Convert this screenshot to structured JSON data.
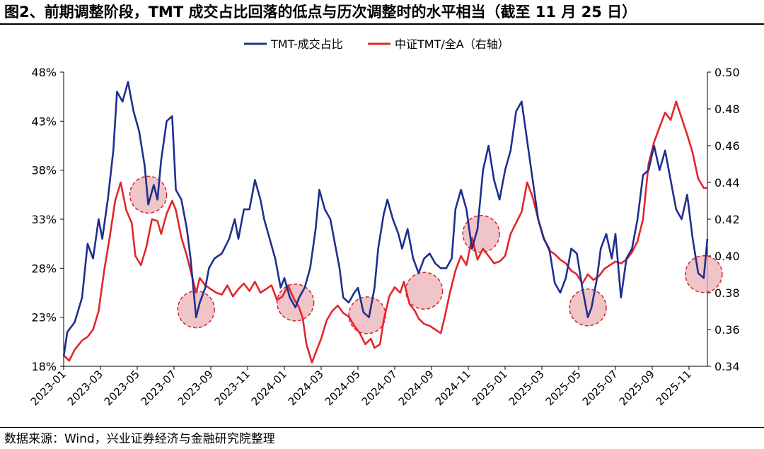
{
  "title": "图2、前期调整阶段，TMT 成交占比回落的低点与历次调整时的水平相当（截至 11 月 25 日）",
  "source": "数据来源：Wind，兴业证券经济与金融研究院整理",
  "colors": {
    "tmt_share": "#1f2f8f",
    "tmt_index": "#e3262b",
    "circle_fill": "#e9b1b4",
    "circle_stroke": "#d6262b"
  },
  "chart_data": {
    "type": "line",
    "legend": [
      "TMT-成交占比",
      "中证TMT/全A（右轴）"
    ],
    "legend_position": "top-center",
    "x_ticks": [
      "2023-01",
      "2023-03",
      "2023-05",
      "2023-07",
      "2023-09",
      "2023-11",
      "2024-01",
      "2024-03",
      "2024-05",
      "2024-07",
      "2024-09",
      "2024-11",
      "2025-01",
      "2025-03",
      "2025-05",
      "2025-07",
      "2025-09",
      "2025-11"
    ],
    "x_range": [
      "2023-01",
      "2025-11-25"
    ],
    "y_left": {
      "label": "TMT-成交占比",
      "ticks": [
        "48%",
        "43%",
        "38%",
        "33%",
        "28%",
        "23%",
        "18%"
      ],
      "min": 18,
      "max": 48
    },
    "y_right": {
      "label": "中证TMT/全A",
      "ticks": [
        "0.50",
        "0.48",
        "0.46",
        "0.44",
        "0.42",
        "0.40",
        "0.38",
        "0.36",
        "0.34"
      ],
      "min": 0.34,
      "max": 0.5
    },
    "series": [
      {
        "name": "TMT-成交占比",
        "axis": "left",
        "color": "#1f2f8f",
        "points": [
          [
            0.0,
            19
          ],
          [
            0.2,
            21.5
          ],
          [
            0.6,
            22.5
          ],
          [
            1.0,
            25
          ],
          [
            1.3,
            30.5
          ],
          [
            1.6,
            29
          ],
          [
            1.9,
            33
          ],
          [
            2.1,
            31
          ],
          [
            2.4,
            35
          ],
          [
            2.7,
            40
          ],
          [
            2.9,
            46
          ],
          [
            3.2,
            45
          ],
          [
            3.5,
            47
          ],
          [
            3.8,
            44
          ],
          [
            4.1,
            42
          ],
          [
            4.4,
            38.5
          ],
          [
            4.6,
            34.5
          ],
          [
            4.9,
            36.5
          ],
          [
            5.1,
            35
          ],
          [
            5.3,
            39
          ],
          [
            5.6,
            43
          ],
          [
            5.9,
            43.5
          ],
          [
            6.1,
            36
          ],
          [
            6.4,
            35
          ],
          [
            6.7,
            32
          ],
          [
            6.9,
            29
          ],
          [
            7.2,
            23
          ],
          [
            7.4,
            24.5
          ],
          [
            7.7,
            26
          ],
          [
            7.9,
            28
          ],
          [
            8.2,
            29
          ],
          [
            8.6,
            29.5
          ],
          [
            9.0,
            31
          ],
          [
            9.3,
            33
          ],
          [
            9.5,
            31
          ],
          [
            9.8,
            34
          ],
          [
            10.1,
            34
          ],
          [
            10.4,
            37
          ],
          [
            10.7,
            35
          ],
          [
            10.9,
            33
          ],
          [
            11.2,
            31
          ],
          [
            11.5,
            29
          ],
          [
            11.8,
            26
          ],
          [
            12.0,
            27
          ],
          [
            12.3,
            25
          ],
          [
            12.6,
            24
          ],
          [
            12.8,
            25
          ],
          [
            13.1,
            26
          ],
          [
            13.4,
            28
          ],
          [
            13.7,
            32
          ],
          [
            13.9,
            36
          ],
          [
            14.2,
            34
          ],
          [
            14.5,
            33
          ],
          [
            14.7,
            31
          ],
          [
            15.0,
            28
          ],
          [
            15.2,
            25
          ],
          [
            15.5,
            24.5
          ],
          [
            15.8,
            25.5
          ],
          [
            16.0,
            26
          ],
          [
            16.3,
            23.5
          ],
          [
            16.6,
            23
          ],
          [
            16.9,
            26
          ],
          [
            17.1,
            30
          ],
          [
            17.4,
            33.5
          ],
          [
            17.6,
            35
          ],
          [
            17.9,
            33
          ],
          [
            18.2,
            31.5
          ],
          [
            18.4,
            30
          ],
          [
            18.7,
            32
          ],
          [
            19.0,
            29
          ],
          [
            19.3,
            27.5
          ],
          [
            19.6,
            29
          ],
          [
            19.9,
            29.5
          ],
          [
            20.2,
            28.5
          ],
          [
            20.5,
            28
          ],
          [
            20.8,
            28
          ],
          [
            21.1,
            29
          ],
          [
            21.3,
            34
          ],
          [
            21.6,
            36
          ],
          [
            21.9,
            34
          ],
          [
            22.2,
            30
          ],
          [
            22.5,
            32
          ],
          [
            22.8,
            38
          ],
          [
            23.1,
            40.5
          ],
          [
            23.4,
            37
          ],
          [
            23.7,
            35
          ],
          [
            24.0,
            38
          ],
          [
            24.3,
            40
          ],
          [
            24.6,
            44
          ],
          [
            24.9,
            45
          ],
          [
            25.2,
            41
          ],
          [
            25.5,
            37
          ],
          [
            25.8,
            33
          ],
          [
            26.1,
            31
          ],
          [
            26.4,
            30
          ],
          [
            26.7,
            26.5
          ],
          [
            27.0,
            25.5
          ],
          [
            27.3,
            27
          ],
          [
            27.6,
            30
          ],
          [
            27.9,
            29.5
          ],
          [
            28.2,
            26
          ],
          [
            28.5,
            23
          ],
          [
            28.7,
            24
          ],
          [
            29.0,
            27
          ],
          [
            29.2,
            30
          ],
          [
            29.5,
            31.5
          ],
          [
            29.8,
            29
          ],
          [
            30.0,
            31.5
          ],
          [
            30.3,
            25
          ],
          [
            30.6,
            29
          ],
          [
            30.9,
            30
          ],
          [
            31.2,
            33
          ],
          [
            31.5,
            37.5
          ],
          [
            31.8,
            38
          ],
          [
            32.1,
            40.5
          ],
          [
            32.4,
            38
          ],
          [
            32.7,
            40
          ],
          [
            33.0,
            37
          ],
          [
            33.3,
            34
          ],
          [
            33.6,
            33
          ],
          [
            33.9,
            35.5
          ],
          [
            34.2,
            31
          ],
          [
            34.5,
            27.5
          ],
          [
            34.8,
            27
          ],
          [
            35.0,
            31
          ]
        ]
      },
      {
        "name": "中证TMT/全A（右轴）",
        "axis": "right",
        "color": "#e3262b",
        "points": [
          [
            0.0,
            0.346
          ],
          [
            0.3,
            0.343
          ],
          [
            0.6,
            0.349
          ],
          [
            1.0,
            0.354
          ],
          [
            1.3,
            0.356
          ],
          [
            1.6,
            0.36
          ],
          [
            1.9,
            0.37
          ],
          [
            2.2,
            0.392
          ],
          [
            2.5,
            0.41
          ],
          [
            2.8,
            0.43
          ],
          [
            3.1,
            0.44
          ],
          [
            3.4,
            0.425
          ],
          [
            3.7,
            0.418
          ],
          [
            3.9,
            0.4
          ],
          [
            4.2,
            0.395
          ],
          [
            4.5,
            0.405
          ],
          [
            4.8,
            0.42
          ],
          [
            5.1,
            0.419
          ],
          [
            5.3,
            0.412
          ],
          [
            5.6,
            0.423
          ],
          [
            5.9,
            0.43
          ],
          [
            6.1,
            0.425
          ],
          [
            6.4,
            0.41
          ],
          [
            6.7,
            0.4
          ],
          [
            6.9,
            0.392
          ],
          [
            7.2,
            0.38
          ],
          [
            7.4,
            0.388
          ],
          [
            7.7,
            0.384
          ],
          [
            8.0,
            0.382
          ],
          [
            8.3,
            0.38
          ],
          [
            8.6,
            0.379
          ],
          [
            8.9,
            0.384
          ],
          [
            9.2,
            0.378
          ],
          [
            9.5,
            0.382
          ],
          [
            9.8,
            0.385
          ],
          [
            10.1,
            0.381
          ],
          [
            10.4,
            0.386
          ],
          [
            10.7,
            0.38
          ],
          [
            11.0,
            0.382
          ],
          [
            11.3,
            0.384
          ],
          [
            11.6,
            0.376
          ],
          [
            11.9,
            0.378
          ],
          [
            12.2,
            0.384
          ],
          [
            12.5,
            0.377
          ],
          [
            12.8,
            0.372
          ],
          [
            13.0,
            0.366
          ],
          [
            13.2,
            0.352
          ],
          [
            13.5,
            0.342
          ],
          [
            13.8,
            0.35
          ],
          [
            14.0,
            0.355
          ],
          [
            14.3,
            0.365
          ],
          [
            14.6,
            0.37
          ],
          [
            14.9,
            0.373
          ],
          [
            15.2,
            0.369
          ],
          [
            15.5,
            0.367
          ],
          [
            15.8,
            0.362
          ],
          [
            16.1,
            0.358
          ],
          [
            16.4,
            0.352
          ],
          [
            16.7,
            0.355
          ],
          [
            16.9,
            0.35
          ],
          [
            17.2,
            0.352
          ],
          [
            17.4,
            0.365
          ],
          [
            17.7,
            0.378
          ],
          [
            18.0,
            0.383
          ],
          [
            18.3,
            0.38
          ],
          [
            18.5,
            0.386
          ],
          [
            18.8,
            0.374
          ],
          [
            19.1,
            0.37
          ],
          [
            19.3,
            0.366
          ],
          [
            19.6,
            0.363
          ],
          [
            19.9,
            0.362
          ],
          [
            20.2,
            0.36
          ],
          [
            20.5,
            0.358
          ],
          [
            20.7,
            0.366
          ],
          [
            21.0,
            0.38
          ],
          [
            21.3,
            0.392
          ],
          [
            21.6,
            0.4
          ],
          [
            21.9,
            0.395
          ],
          [
            22.2,
            0.41
          ],
          [
            22.5,
            0.398
          ],
          [
            22.8,
            0.404
          ],
          [
            23.1,
            0.4
          ],
          [
            23.4,
            0.396
          ],
          [
            23.7,
            0.397
          ],
          [
            24.0,
            0.4
          ],
          [
            24.3,
            0.412
          ],
          [
            24.6,
            0.418
          ],
          [
            24.9,
            0.424
          ],
          [
            25.2,
            0.44
          ],
          [
            25.5,
            0.432
          ],
          [
            25.8,
            0.42
          ],
          [
            26.1,
            0.41
          ],
          [
            26.4,
            0.403
          ],
          [
            26.7,
            0.401
          ],
          [
            27.0,
            0.398
          ],
          [
            27.3,
            0.396
          ],
          [
            27.6,
            0.392
          ],
          [
            27.9,
            0.39
          ],
          [
            28.2,
            0.385
          ],
          [
            28.5,
            0.39
          ],
          [
            28.8,
            0.387
          ],
          [
            29.1,
            0.389
          ],
          [
            29.4,
            0.393
          ],
          [
            29.7,
            0.395
          ],
          [
            30.0,
            0.397
          ],
          [
            30.3,
            0.396
          ],
          [
            30.6,
            0.398
          ],
          [
            30.9,
            0.402
          ],
          [
            31.2,
            0.408
          ],
          [
            31.5,
            0.42
          ],
          [
            31.8,
            0.45
          ],
          [
            32.1,
            0.462
          ],
          [
            32.4,
            0.47
          ],
          [
            32.7,
            0.478
          ],
          [
            33.0,
            0.474
          ],
          [
            33.3,
            0.484
          ],
          [
            33.6,
            0.475
          ],
          [
            33.9,
            0.466
          ],
          [
            34.2,
            0.456
          ],
          [
            34.5,
            0.442
          ],
          [
            34.8,
            0.437
          ],
          [
            35.0,
            0.437
          ]
        ]
      }
    ],
    "annotations": [
      {
        "type": "circle",
        "x": 4.6,
        "y": 35.5,
        "axis": "left"
      },
      {
        "type": "circle",
        "x": 7.2,
        "y": 23.8,
        "axis": "left"
      },
      {
        "type": "circle",
        "x": 12.6,
        "y": 24.5,
        "axis": "left"
      },
      {
        "type": "circle",
        "x": 16.5,
        "y": 23.2,
        "axis": "left"
      },
      {
        "type": "circle",
        "x": 19.6,
        "y": 25.7,
        "axis": "left"
      },
      {
        "type": "circle",
        "x": 22.7,
        "y": 31.5,
        "axis": "left"
      },
      {
        "type": "circle",
        "x": 28.5,
        "y": 24.0,
        "axis": "left"
      },
      {
        "type": "circle",
        "x": 34.8,
        "y": 27.4,
        "axis": "left"
      }
    ]
  }
}
